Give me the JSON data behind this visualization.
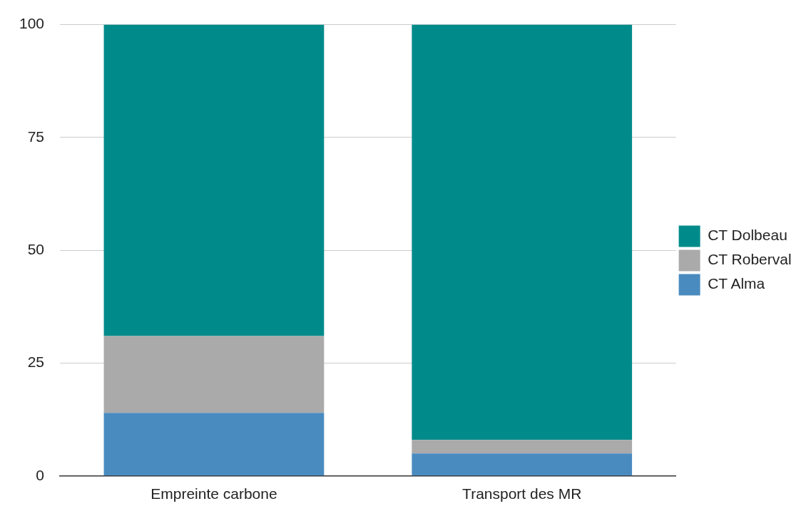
{
  "chart_data": {
    "type": "bar",
    "stacked": true,
    "categories": [
      "Empreinte carbone",
      "Transport des MR"
    ],
    "series": [
      {
        "name": "CT Alma",
        "color": "#4a8bbf",
        "values": [
          14,
          5
        ]
      },
      {
        "name": "CT Roberval",
        "color": "#aaaaaa",
        "values": [
          17,
          3
        ]
      },
      {
        "name": "CT Dolbeau",
        "color": "#008b8a",
        "values": [
          69,
          92
        ]
      }
    ],
    "ylim": [
      0,
      100
    ],
    "yticks": [
      0,
      25,
      50,
      75,
      100
    ],
    "grid": "y",
    "legend": "right"
  }
}
